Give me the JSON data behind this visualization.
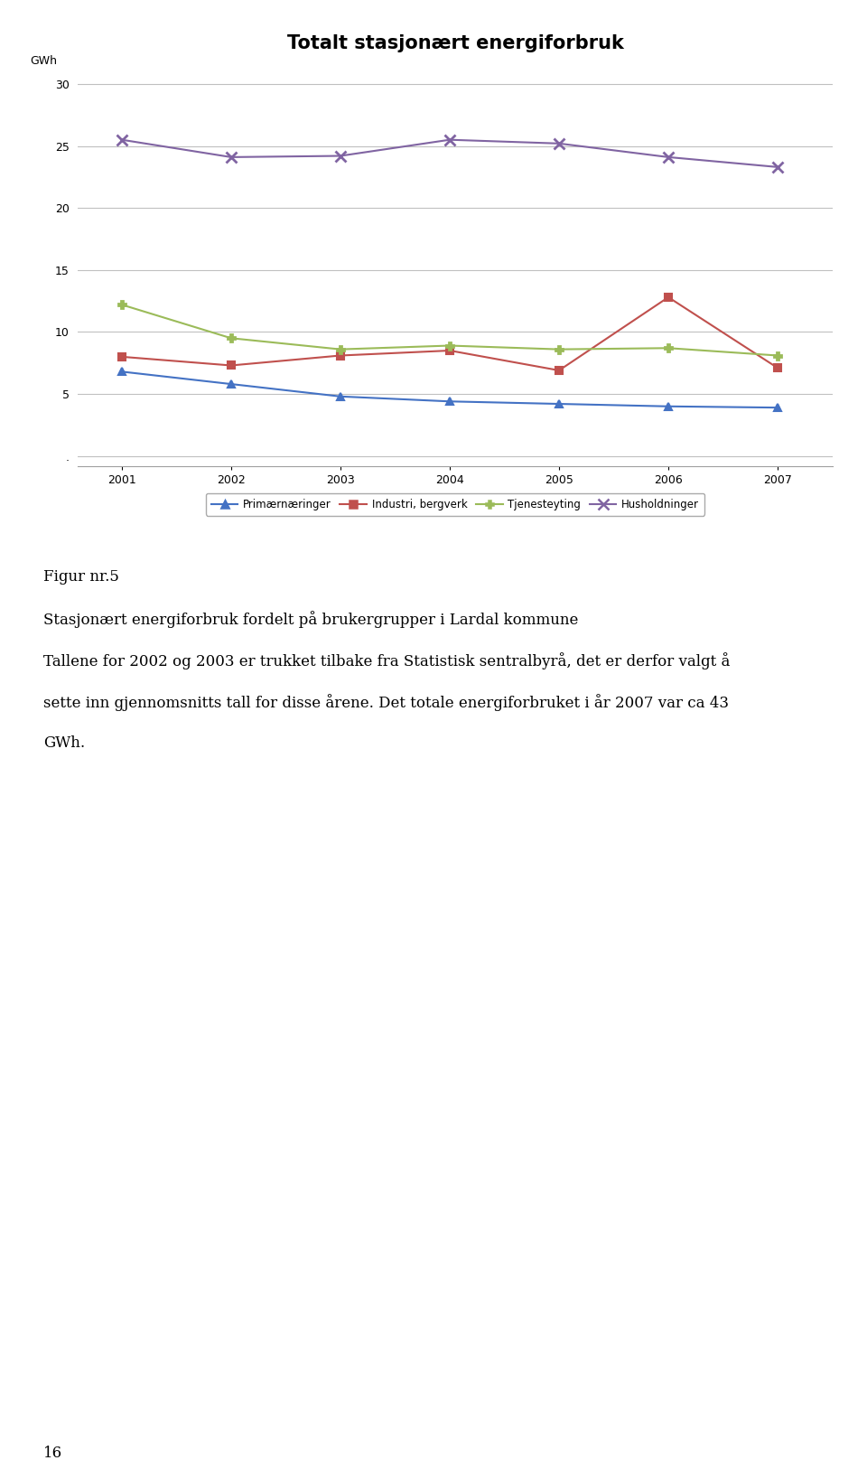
{
  "title": "Totalt stasjonært energiforbruk",
  "ylabel": "GWh",
  "years": [
    2001,
    2002,
    2003,
    2004,
    2005,
    2006,
    2007
  ],
  "series_order": [
    "Primærnæringer",
    "Industri, bergverk",
    "Tjenesteyting",
    "Husholdninger"
  ],
  "series": {
    "Primærnæringer": {
      "values": [
        6.8,
        5.8,
        4.8,
        4.4,
        4.2,
        4.0,
        3.9
      ],
      "color": "#4472C4",
      "marker": "^",
      "linestyle": "-"
    },
    "Industri, bergverk": {
      "values": [
        8.0,
        7.3,
        8.1,
        8.5,
        6.9,
        12.8,
        7.1
      ],
      "color": "#C0504D",
      "marker": "s",
      "linestyle": "-"
    },
    "Tjenesteyting": {
      "values": [
        12.2,
        9.5,
        8.6,
        8.9,
        8.6,
        8.7,
        8.1
      ],
      "color": "#9BBB59",
      "marker": "P",
      "linestyle": "-"
    },
    "Husholdninger": {
      "values": [
        25.5,
        24.1,
        24.2,
        25.5,
        25.2,
        24.1,
        23.3
      ],
      "color": "#8064A2",
      "marker": "x",
      "linestyle": "-"
    }
  },
  "ylim": [
    -0.8,
    32
  ],
  "yticks": [
    0,
    5,
    10,
    15,
    20,
    25,
    30
  ],
  "background_color": "#FFFFFF",
  "plot_bg_color": "#FFFFFF",
  "grid_color": "#C0C0C0",
  "title_fontsize": 15,
  "tick_fontsize": 9,
  "legend_fontsize": 8.5,
  "caption_line1": "Figur nr.5",
  "caption_line2": "Stasjonært energiforbruk fordelt på brukergrupper i Lardal kommune",
  "caption_line3": "Tallene for 2002 og 2003 er trukket tilbake fra Statistisk sentralbyrå, det er derfor valgt å",
  "caption_line4": "sette inn gjennomsnitts tall for disse årene. Det totale energiforbruket i år 2007 var ca 43",
  "caption_line5": "GWh.",
  "page_number": "16"
}
